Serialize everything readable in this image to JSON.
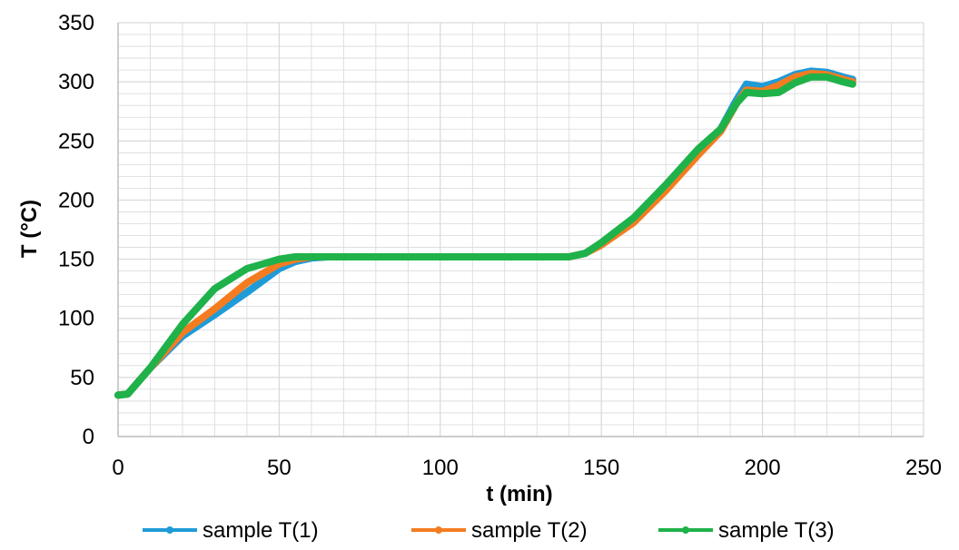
{
  "chart_data": {
    "type": "line",
    "xlabel": "t (min)",
    "ylabel": "T (°C)",
    "xlim": [
      0,
      250
    ],
    "ylim": [
      0,
      350
    ],
    "x_ticks": [
      0,
      50,
      100,
      150,
      200,
      250
    ],
    "y_ticks": [
      0,
      50,
      100,
      150,
      200,
      250,
      300,
      350
    ],
    "grid": "major and minor, light gray",
    "legend_position": "bottom",
    "colors": {
      "sample_T1": "#1f9bd8",
      "sample_T2": "#f47c20",
      "sample_T3": "#1fb24a",
      "grid": "#d9d9d9",
      "axis": "#bfbfbf"
    },
    "series": [
      {
        "name": "sample T(1)",
        "x": [
          0,
          3,
          10,
          20,
          30,
          40,
          50,
          55,
          60,
          65,
          70,
          100,
          140,
          145,
          150,
          160,
          170,
          180,
          187,
          192,
          195,
          200,
          205,
          210,
          215,
          220,
          225,
          228
        ],
        "y": [
          35,
          36,
          58,
          85,
          103,
          122,
          142,
          148,
          151,
          152,
          152,
          152,
          152,
          155,
          163,
          183,
          210,
          240,
          260,
          285,
          298,
          296,
          300,
          306,
          309,
          308,
          304,
          302
        ]
      },
      {
        "name": "sample T(2)",
        "x": [
          0,
          3,
          10,
          20,
          30,
          40,
          50,
          55,
          60,
          65,
          70,
          100,
          140,
          145,
          150,
          160,
          170,
          180,
          187,
          192,
          195,
          200,
          205,
          210,
          215,
          220,
          225,
          228
        ],
        "y": [
          35,
          36,
          58,
          88,
          108,
          130,
          146,
          150,
          152,
          152,
          152,
          152,
          152,
          155,
          162,
          181,
          208,
          238,
          258,
          282,
          293,
          292,
          297,
          304,
          307,
          306,
          302,
          300
        ]
      },
      {
        "name": "sample T(3)",
        "x": [
          0,
          3,
          10,
          20,
          30,
          40,
          45,
          50,
          55,
          60,
          65,
          70,
          100,
          140,
          145,
          150,
          160,
          170,
          180,
          187,
          192,
          195,
          200,
          205,
          210,
          215,
          220,
          225,
          228
        ],
        "y": [
          35,
          36,
          58,
          95,
          125,
          142,
          146,
          150,
          152,
          152,
          152,
          152,
          152,
          152,
          155,
          164,
          185,
          213,
          243,
          260,
          282,
          291,
          290,
          291,
          299,
          304,
          304,
          300,
          298
        ]
      }
    ]
  }
}
